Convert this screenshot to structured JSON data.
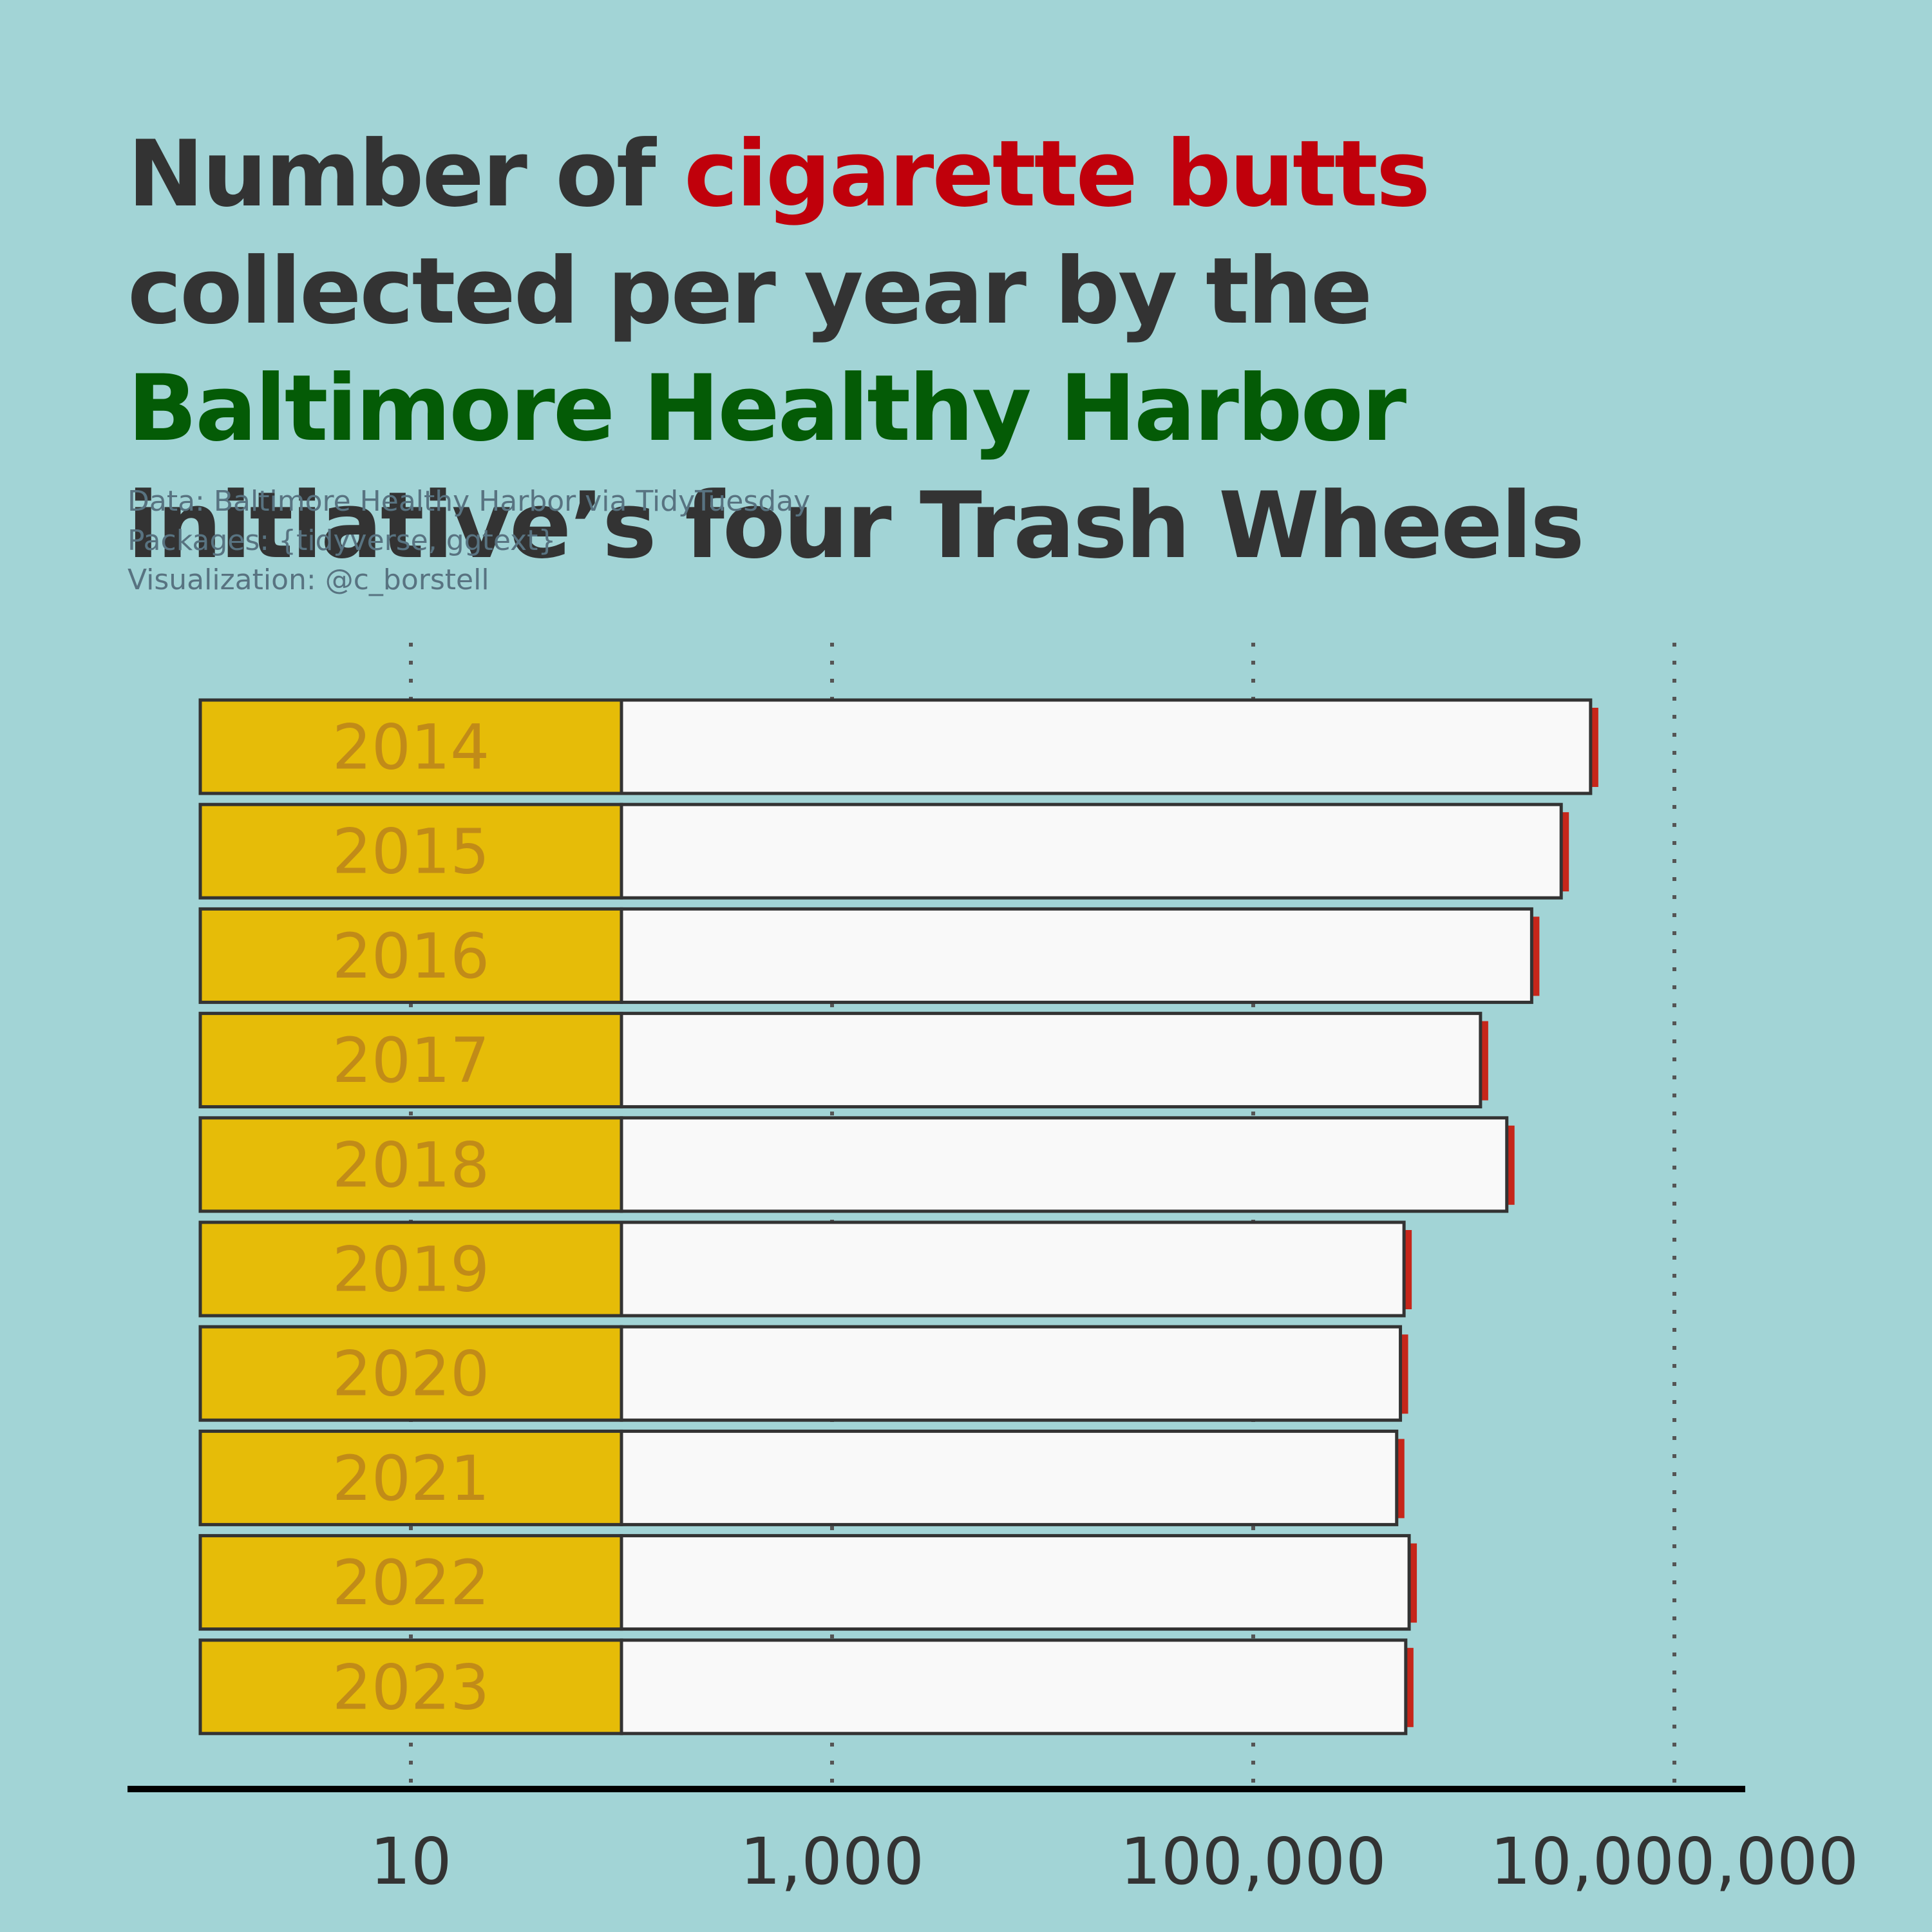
{
  "title": {
    "part1": "Number of ",
    "highlight1": "cigarette butts",
    "part2": " collected per year by the ",
    "highlight2": "Baltimore Healthy Harbor",
    "part3": " initiative’s four Trash Wheels",
    "highlight1_color": "#c0000b",
    "highlight2_color": "#045b06"
  },
  "caption": {
    "line1": "Data: Baltimore Healthy Harbor via TidyTuesday",
    "line2": "Packages: {tidyverse, ggtext}",
    "line3": "Visualization: @c_borstell"
  },
  "colors": {
    "background": "#a2d4d6",
    "filter": "#e6bc08",
    "paper": "#f9f9f9",
    "ember": "#c6261a",
    "year_text": "#c18b18",
    "outline": "#333333"
  },
  "chart_data": {
    "type": "bar",
    "orientation": "horizontal",
    "x_scale": "log10",
    "xlim": [
      1,
      20000000
    ],
    "xticks": [
      10,
      1000,
      100000,
      10000000
    ],
    "xtick_labels": [
      "10",
      "1,000",
      "100,000",
      "10,000,000"
    ],
    "filter_end": 100,
    "grid": "vertical dotted",
    "title": "Number of cigarette butts collected per year by the Baltimore Healthy Harbor initiative’s four Trash Wheels",
    "xlabel": "",
    "ylabel": "",
    "categories": [
      "2014",
      "2015",
      "2016",
      "2017",
      "2018",
      "2019",
      "2020",
      "2021",
      "2022",
      "2023"
    ],
    "values": [
      4000000,
      2900000,
      2100000,
      1200000,
      1600000,
      520000,
      500000,
      480000,
      550000,
      530000
    ]
  }
}
